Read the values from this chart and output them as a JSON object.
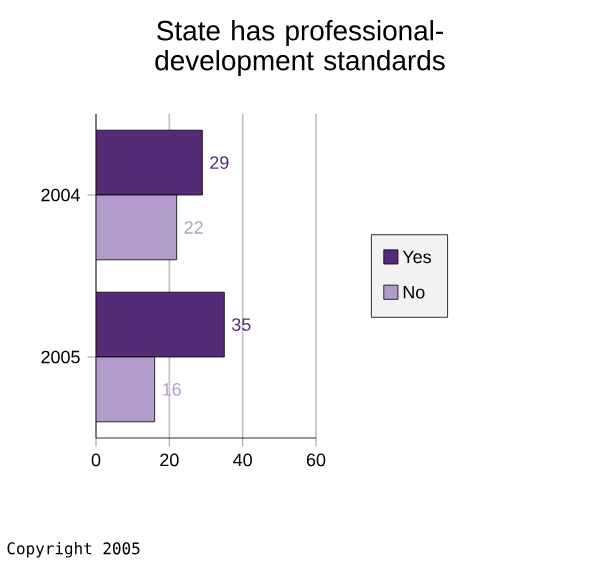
{
  "chart_data": {
    "type": "bar",
    "orientation": "horizontal",
    "title": "State has professional-development standards",
    "categories": [
      "2004",
      "2005"
    ],
    "series": [
      {
        "name": "Yes",
        "color": "#552a77",
        "values": [
          29,
          35
        ]
      },
      {
        "name": "No",
        "color": "#b39ccc",
        "values": [
          22,
          16
        ]
      }
    ],
    "xlim": [
      0,
      60
    ],
    "xticks": [
      0,
      20,
      40,
      60
    ],
    "grid": "x",
    "legend": "right",
    "data_labels": true,
    "annotations": [
      "Copyright 2005"
    ]
  }
}
